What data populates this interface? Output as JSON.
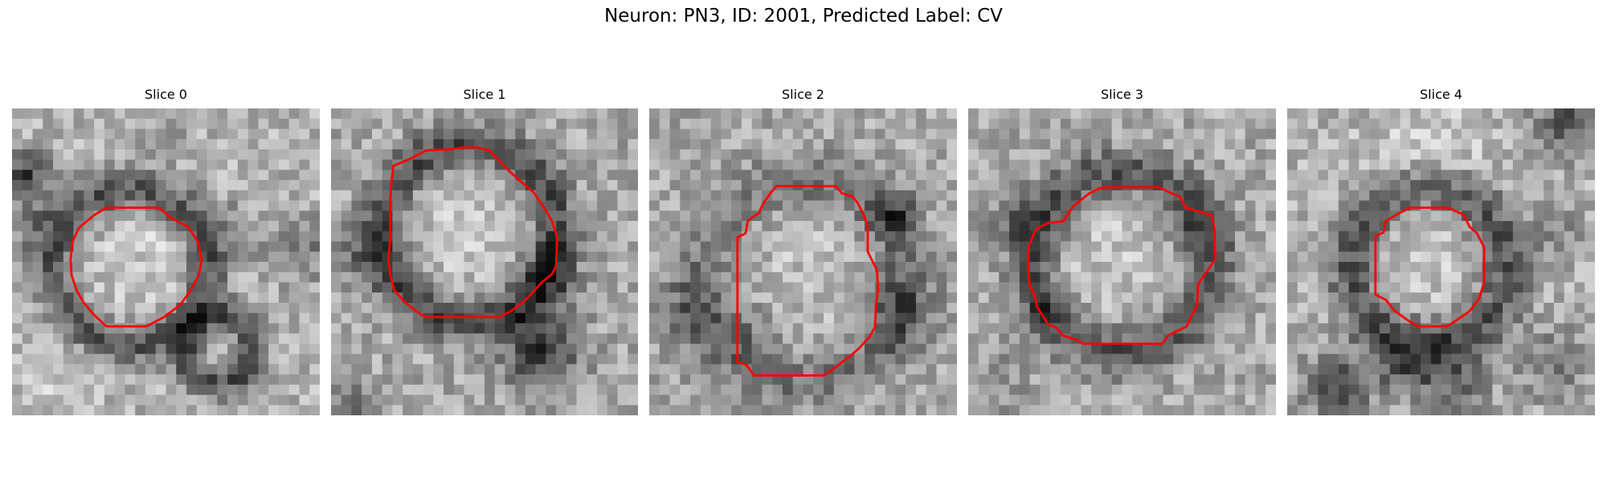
{
  "figure": {
    "title": "Neuron: PN3, ID: 2001, Predicted Label: CV"
  },
  "panels": [
    {
      "title": "Slice 0"
    },
    {
      "title": "Slice 1"
    },
    {
      "title": "Slice 2"
    },
    {
      "title": "Slice 3"
    },
    {
      "title": "Slice 4"
    }
  ],
  "colors": {
    "contour": "#ff0000",
    "colormap": "grayscale"
  }
}
